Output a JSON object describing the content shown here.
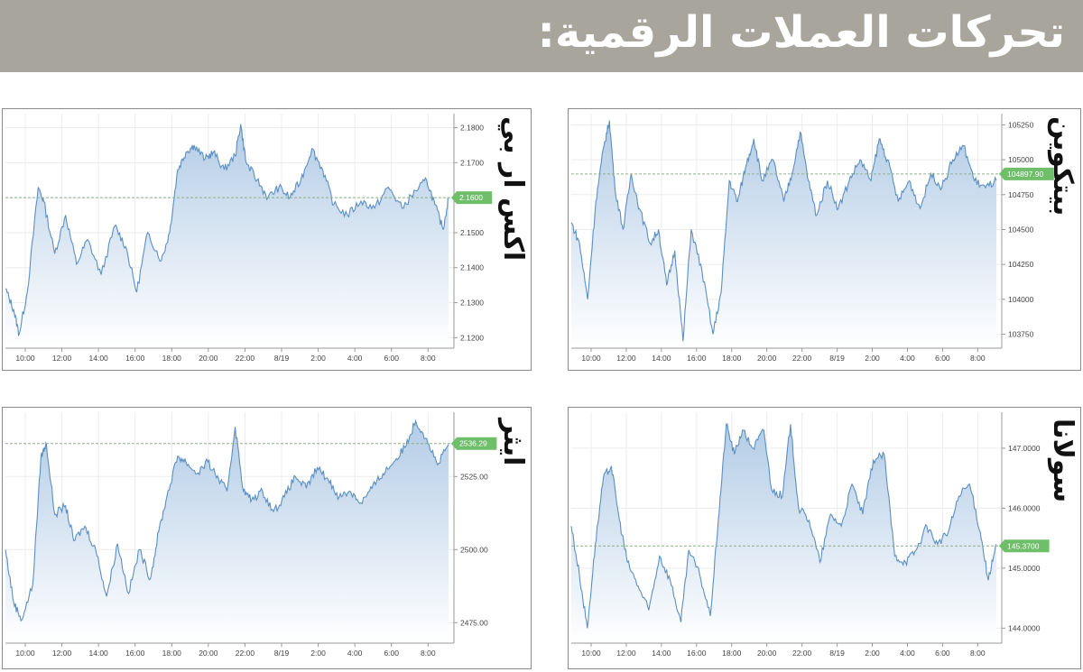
{
  "header": {
    "title": "تحركات العملات الرقمية:"
  },
  "colors": {
    "line": "#5b8fc2",
    "fill_top": "#b3cce6",
    "fill_bottom": "#ffffff",
    "badge": "#6fbe6a",
    "dashed": "#8db08a",
    "header_bg": "#a8a59c"
  },
  "chart_data": [
    {
      "id": "xrp",
      "type": "area",
      "title": "اكس ار بي",
      "x": [
        "10:00",
        "12:00",
        "14:00",
        "16:00",
        "18:00",
        "20:00",
        "22:00",
        "8/19",
        "2:00",
        "4:00",
        "6:00",
        "8:00"
      ],
      "y_ticks": [
        "2.1800",
        "2.1700",
        "2.1600",
        "2.1500",
        "2.1400",
        "2.1300",
        "2.1200"
      ],
      "ylim": [
        2.117,
        2.184
      ],
      "current_value_label": "2.1600",
      "current_value": 2.16,
      "grid": true,
      "anchors": [
        [
          0,
          2.134
        ],
        [
          0.3,
          2.128
        ],
        [
          0.5,
          2.121
        ],
        [
          0.8,
          2.133
        ],
        [
          1.2,
          2.163
        ],
        [
          1.4,
          2.159
        ],
        [
          1.8,
          2.144
        ],
        [
          2.2,
          2.155
        ],
        [
          2.6,
          2.141
        ],
        [
          3,
          2.148
        ],
        [
          3.5,
          2.138
        ],
        [
          4,
          2.152
        ],
        [
          4.4,
          2.146
        ],
        [
          4.8,
          2.133
        ],
        [
          5.2,
          2.15
        ],
        [
          5.7,
          2.142
        ],
        [
          6,
          2.15
        ],
        [
          6.3,
          2.168
        ],
        [
          6.6,
          2.173
        ],
        [
          6.9,
          2.175
        ],
        [
          7.3,
          2.171
        ],
        [
          7.6,
          2.173
        ],
        [
          8,
          2.168
        ],
        [
          8.4,
          2.172
        ],
        [
          8.6,
          2.181
        ],
        [
          8.8,
          2.17
        ],
        [
          9.2,
          2.165
        ],
        [
          9.6,
          2.16
        ],
        [
          10,
          2.163
        ],
        [
          10.4,
          2.16
        ],
        [
          10.8,
          2.165
        ],
        [
          11.2,
          2.174
        ],
        [
          11.6,
          2.168
        ],
        [
          12,
          2.158
        ],
        [
          12.5,
          2.155
        ],
        [
          13,
          2.159
        ],
        [
          13.5,
          2.157
        ],
        [
          14,
          2.163
        ],
        [
          14.5,
          2.157
        ],
        [
          15,
          2.162
        ],
        [
          15.4,
          2.165
        ],
        [
          15.7,
          2.158
        ],
        [
          16,
          2.151
        ],
        [
          16.2,
          2.16
        ]
      ]
    },
    {
      "id": "bitcoin",
      "type": "area",
      "title": "بيتكوين",
      "x": [
        "10:00",
        "12:00",
        "14:00",
        "16:00",
        "18:00",
        "20:00",
        "22:00",
        "8/19",
        "2:00",
        "4:00",
        "6:00",
        "8:00"
      ],
      "y_ticks": [
        "105250",
        "105000",
        "104750",
        "104500",
        "104250",
        "104000",
        "103750"
      ],
      "ylim": [
        103650,
        105330
      ],
      "current_value_label": "104897.90",
      "current_value": 104897.9,
      "grid": true,
      "anchors": [
        [
          0,
          104550
        ],
        [
          0.3,
          104400
        ],
        [
          0.6,
          104000
        ],
        [
          0.9,
          104700
        ],
        [
          1.2,
          105100
        ],
        [
          1.4,
          105280
        ],
        [
          1.6,
          104800
        ],
        [
          1.9,
          104500
        ],
        [
          2.2,
          104900
        ],
        [
          2.5,
          104650
        ],
        [
          2.9,
          104400
        ],
        [
          3.2,
          104500
        ],
        [
          3.5,
          104100
        ],
        [
          3.8,
          104350
        ],
        [
          4.1,
          103700
        ],
        [
          4.4,
          104500
        ],
        [
          4.8,
          104200
        ],
        [
          5.2,
          103750
        ],
        [
          5.5,
          104050
        ],
        [
          5.8,
          104850
        ],
        [
          6.1,
          104700
        ],
        [
          6.4,
          104950
        ],
        [
          6.7,
          105150
        ],
        [
          7,
          104850
        ],
        [
          7.4,
          105000
        ],
        [
          7.8,
          104700
        ],
        [
          8.1,
          104900
        ],
        [
          8.4,
          105200
        ],
        [
          8.7,
          104850
        ],
        [
          9,
          104600
        ],
        [
          9.4,
          104850
        ],
        [
          9.8,
          104650
        ],
        [
          10.2,
          104850
        ],
        [
          10.6,
          105000
        ],
        [
          11,
          104850
        ],
        [
          11.3,
          105150
        ],
        [
          11.6,
          105000
        ],
        [
          12,
          104700
        ],
        [
          12.4,
          104850
        ],
        [
          12.8,
          104650
        ],
        [
          13.2,
          104900
        ],
        [
          13.6,
          104800
        ],
        [
          14,
          105000
        ],
        [
          14.4,
          105100
        ],
        [
          14.8,
          104850
        ],
        [
          15.2,
          104800
        ],
        [
          15.6,
          104850
        ]
      ]
    },
    {
      "id": "ether",
      "type": "area",
      "title": "ايثر",
      "x": [
        "10:00",
        "12:00",
        "14:00",
        "16:00",
        "18:00",
        "20:00",
        "22:00",
        "8/19",
        "2:00",
        "4:00",
        "6:00",
        "8:00"
      ],
      "y_ticks": [
        "2525.00",
        "2500.00",
        "2475.00"
      ],
      "ylim": [
        2468,
        2547
      ],
      "current_value_label": "2536.29",
      "current_value": 2536.29,
      "grid": true,
      "anchors": [
        [
          0,
          2500
        ],
        [
          0.3,
          2482
        ],
        [
          0.6,
          2476
        ],
        [
          1.0,
          2488
        ],
        [
          1.3,
          2532
        ],
        [
          1.5,
          2536
        ],
        [
          1.8,
          2512
        ],
        [
          2.2,
          2515
        ],
        [
          2.5,
          2503
        ],
        [
          2.9,
          2508
        ],
        [
          3.3,
          2500
        ],
        [
          3.7,
          2484
        ],
        [
          4.1,
          2502
        ],
        [
          4.5,
          2485
        ],
        [
          4.9,
          2500
        ],
        [
          5.3,
          2490
        ],
        [
          5.6,
          2506
        ],
        [
          5.9,
          2518
        ],
        [
          6.3,
          2532
        ],
        [
          6.6,
          2530
        ],
        [
          7,
          2526
        ],
        [
          7.4,
          2530
        ],
        [
          7.8,
          2524
        ],
        [
          8.1,
          2520
        ],
        [
          8.4,
          2542
        ],
        [
          8.7,
          2520
        ],
        [
          9,
          2517
        ],
        [
          9.4,
          2520
        ],
        [
          9.8,
          2513
        ],
        [
          10.2,
          2518
        ],
        [
          10.6,
          2525
        ],
        [
          11,
          2521
        ],
        [
          11.4,
          2528
        ],
        [
          11.8,
          2524
        ],
        [
          12.2,
          2518
        ],
        [
          12.6,
          2520
        ],
        [
          13,
          2516
        ],
        [
          13.4,
          2521
        ],
        [
          13.8,
          2526
        ],
        [
          14.2,
          2530
        ],
        [
          14.6,
          2535
        ],
        [
          15,
          2544
        ],
        [
          15.4,
          2538
        ],
        [
          15.8,
          2529
        ],
        [
          16.2,
          2536
        ]
      ]
    },
    {
      "id": "solana",
      "type": "area",
      "title": "سولانا",
      "x": [
        "10:00",
        "12:00",
        "14:00",
        "16:00",
        "18:00",
        "20:00",
        "22:00",
        "8/19",
        "2:00",
        "4:00",
        "6:00",
        "8:00"
      ],
      "y_ticks": [
        "147.0000",
        "146.0000",
        "145.0000",
        "144.0000"
      ],
      "ylim": [
        143.75,
        147.6
      ],
      "current_value_label": "145.3700",
      "current_value": 145.37,
      "grid": true,
      "anchors": [
        [
          0,
          145.7
        ],
        [
          0.3,
          144.9
        ],
        [
          0.6,
          144.0
        ],
        [
          0.9,
          145.4
        ],
        [
          1.2,
          146.5
        ],
        [
          1.5,
          146.7
        ],
        [
          1.8,
          145.8
        ],
        [
          2.1,
          145.1
        ],
        [
          2.5,
          144.7
        ],
        [
          2.9,
          144.3
        ],
        [
          3.3,
          145.2
        ],
        [
          3.7,
          144.8
        ],
        [
          4.1,
          144.1
        ],
        [
          4.4,
          145.3
        ],
        [
          4.8,
          144.9
        ],
        [
          5.2,
          144.2
        ],
        [
          5.5,
          145.8
        ],
        [
          5.8,
          147.4
        ],
        [
          6.1,
          146.9
        ],
        [
          6.4,
          147.3
        ],
        [
          6.8,
          147.0
        ],
        [
          7.2,
          147.3
        ],
        [
          7.5,
          146.3
        ],
        [
          7.9,
          146.2
        ],
        [
          8.2,
          147.4
        ],
        [
          8.5,
          146.0
        ],
        [
          8.9,
          145.8
        ],
        [
          9.3,
          145.1
        ],
        [
          9.7,
          145.9
        ],
        [
          10.1,
          145.7
        ],
        [
          10.5,
          146.4
        ],
        [
          10.9,
          145.9
        ],
        [
          11.3,
          146.8
        ],
        [
          11.7,
          146.9
        ],
        [
          12.1,
          145.2
        ],
        [
          12.5,
          145.1
        ],
        [
          12.9,
          145.3
        ],
        [
          13.3,
          145.7
        ],
        [
          13.7,
          145.4
        ],
        [
          14.1,
          145.6
        ],
        [
          14.5,
          146.2
        ],
        [
          14.9,
          146.4
        ],
        [
          15.3,
          145.6
        ],
        [
          15.6,
          144.8
        ],
        [
          15.9,
          145.4
        ]
      ]
    }
  ]
}
